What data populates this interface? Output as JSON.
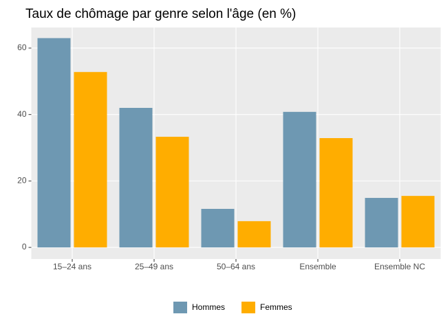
{
  "chart_data": {
    "type": "bar",
    "title": "Taux de chômage par genre selon l'âge (en %)",
    "categories": [
      "15–24 ans",
      "25–49 ans",
      "50–64 ans",
      "Ensemble",
      "Ensemble NC"
    ],
    "series": [
      {
        "name": "Hommes",
        "color": "#6e98b2",
        "values": [
          63,
          42,
          11.6,
          40.8,
          14.9
        ]
      },
      {
        "name": "Femmes",
        "color": "#ffad00",
        "values": [
          52.8,
          33.3,
          7.9,
          32.9,
          15.5
        ]
      }
    ],
    "ylim": [
      -3.5,
      66.2
    ],
    "yticks": [
      0,
      20,
      40,
      60
    ],
    "grid": true,
    "legend": "bottom"
  }
}
